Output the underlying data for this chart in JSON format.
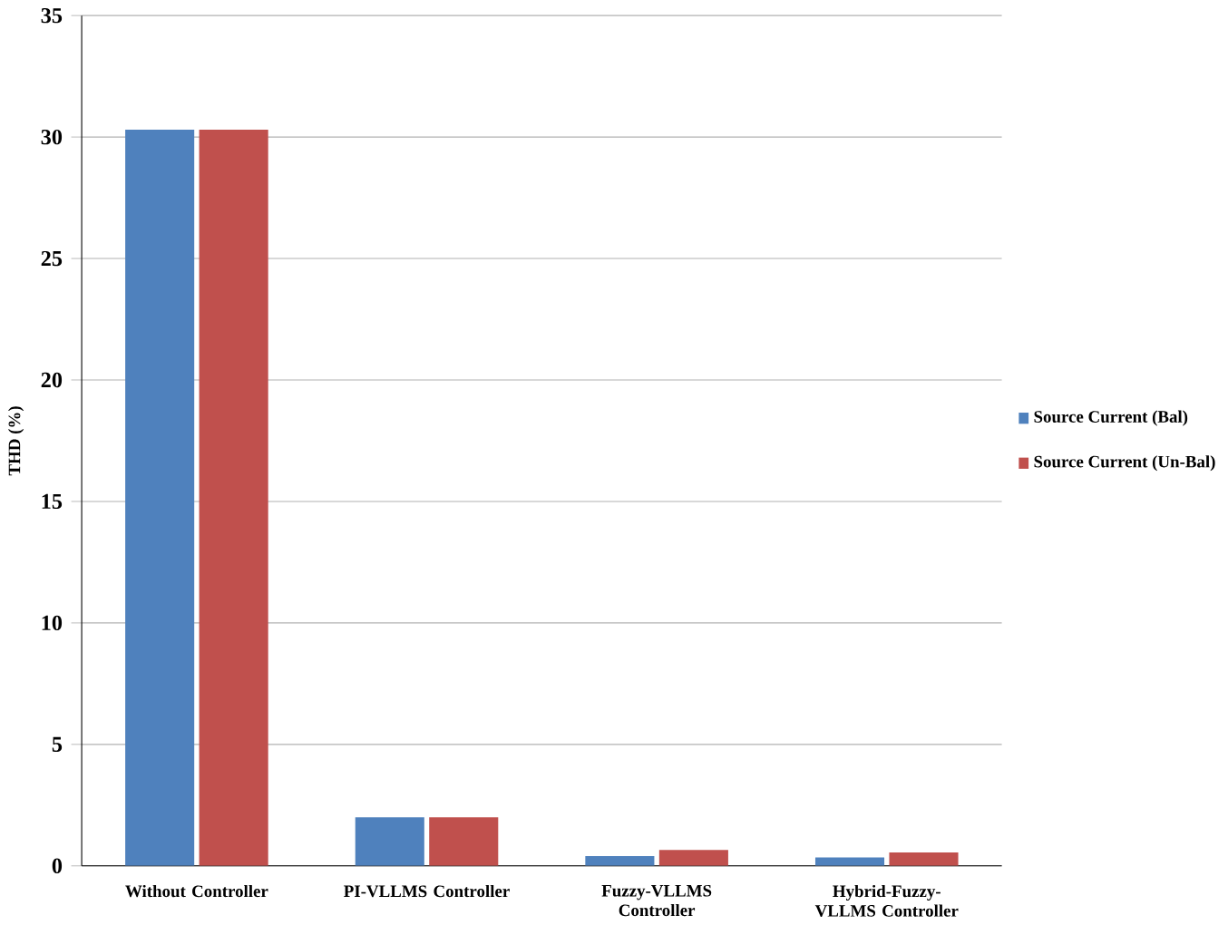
{
  "chart_data": {
    "type": "bar",
    "ylabel": "THD (%)",
    "categories": [
      "Without Controller",
      "PI-VLLMS Controller",
      "Fuzzy-VLLMS Controller",
      "Hybrid-Fuzzy-VLLMS Controller"
    ],
    "series": [
      {
        "name": "Source Current (Bal)",
        "color": "#4f81bd",
        "values": [
          30.3,
          2.0,
          0.4,
          0.35
        ]
      },
      {
        "name": "Source Current (Un-Bal)",
        "color": "#c0504d",
        "values": [
          30.3,
          2.0,
          0.65,
          0.55
        ]
      }
    ],
    "ylim": [
      0,
      35
    ],
    "yticks": [
      0,
      5,
      10,
      15,
      20,
      25,
      30,
      35
    ],
    "grid": "y",
    "legend": "right"
  }
}
